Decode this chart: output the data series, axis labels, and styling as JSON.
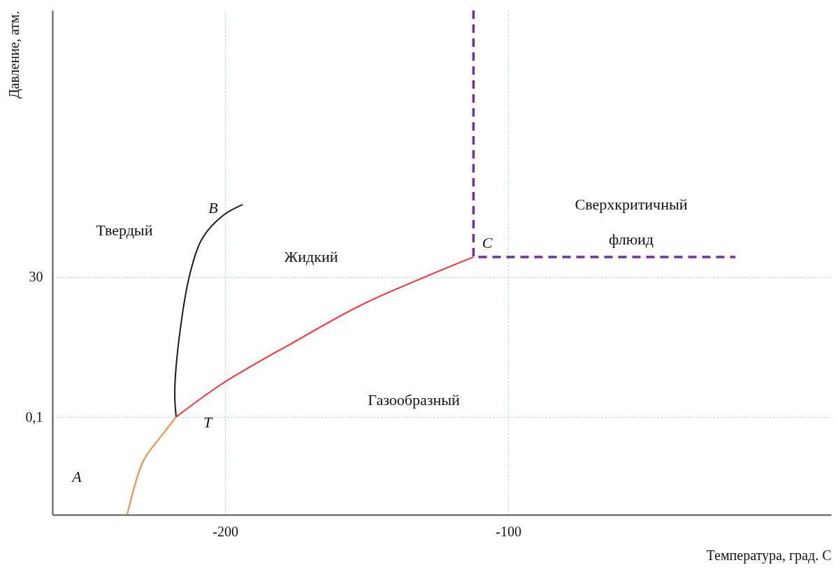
{
  "chart_data": {
    "type": "line",
    "xlabel": "Температура, град. С",
    "ylabel": "Давление, атм.",
    "log": "y",
    "xlim": [
      -261,
      14
    ],
    "ylim": [
      0.00185,
      1600000
    ],
    "xticks": [
      -200,
      -100
    ],
    "yticks": [
      {
        "value": 0.1,
        "label": "0,1"
      },
      30
    ],
    "grid": true,
    "line_style": "solid",
    "series": [
      {
        "color": "#f4873a",
        "x": [
          -234.6,
          -228.9,
          -222.7,
          -217.3
        ],
        "values": [
          0.00185,
          0.0166,
          0.045,
          0.1
        ]
      },
      {
        "color": "#1a1a1a",
        "x": [
          -217.3,
          -217.8,
          -215.8,
          -212.3,
          -207.9,
          -200.5,
          -193.8
        ],
        "values": [
          0.1,
          0.287,
          3.74,
          36.6,
          151,
          380,
          582
        ]
      },
      {
        "color": "#ff2a2a",
        "x": [
          -217.3,
          -200.5,
          -175.8,
          -151.1,
          -131.4,
          -112.3
        ],
        "values": [
          0.1,
          0.404,
          2.11,
          10.1,
          27.5,
          68.5
        ]
      },
      {
        "color": "#7030a0",
        "line_style": "dashed",
        "x": [
          -112.3,
          -112.3,
          -19.8
        ],
        "values": [
          1600000,
          68.5,
          68.5
        ]
      }
    ],
    "annotations": [
      "A",
      "B",
      "C",
      "T",
      "Твердый",
      "Жидкий",
      "Газообразный",
      "Сверхкритичный\nфлюид"
    ]
  }
}
